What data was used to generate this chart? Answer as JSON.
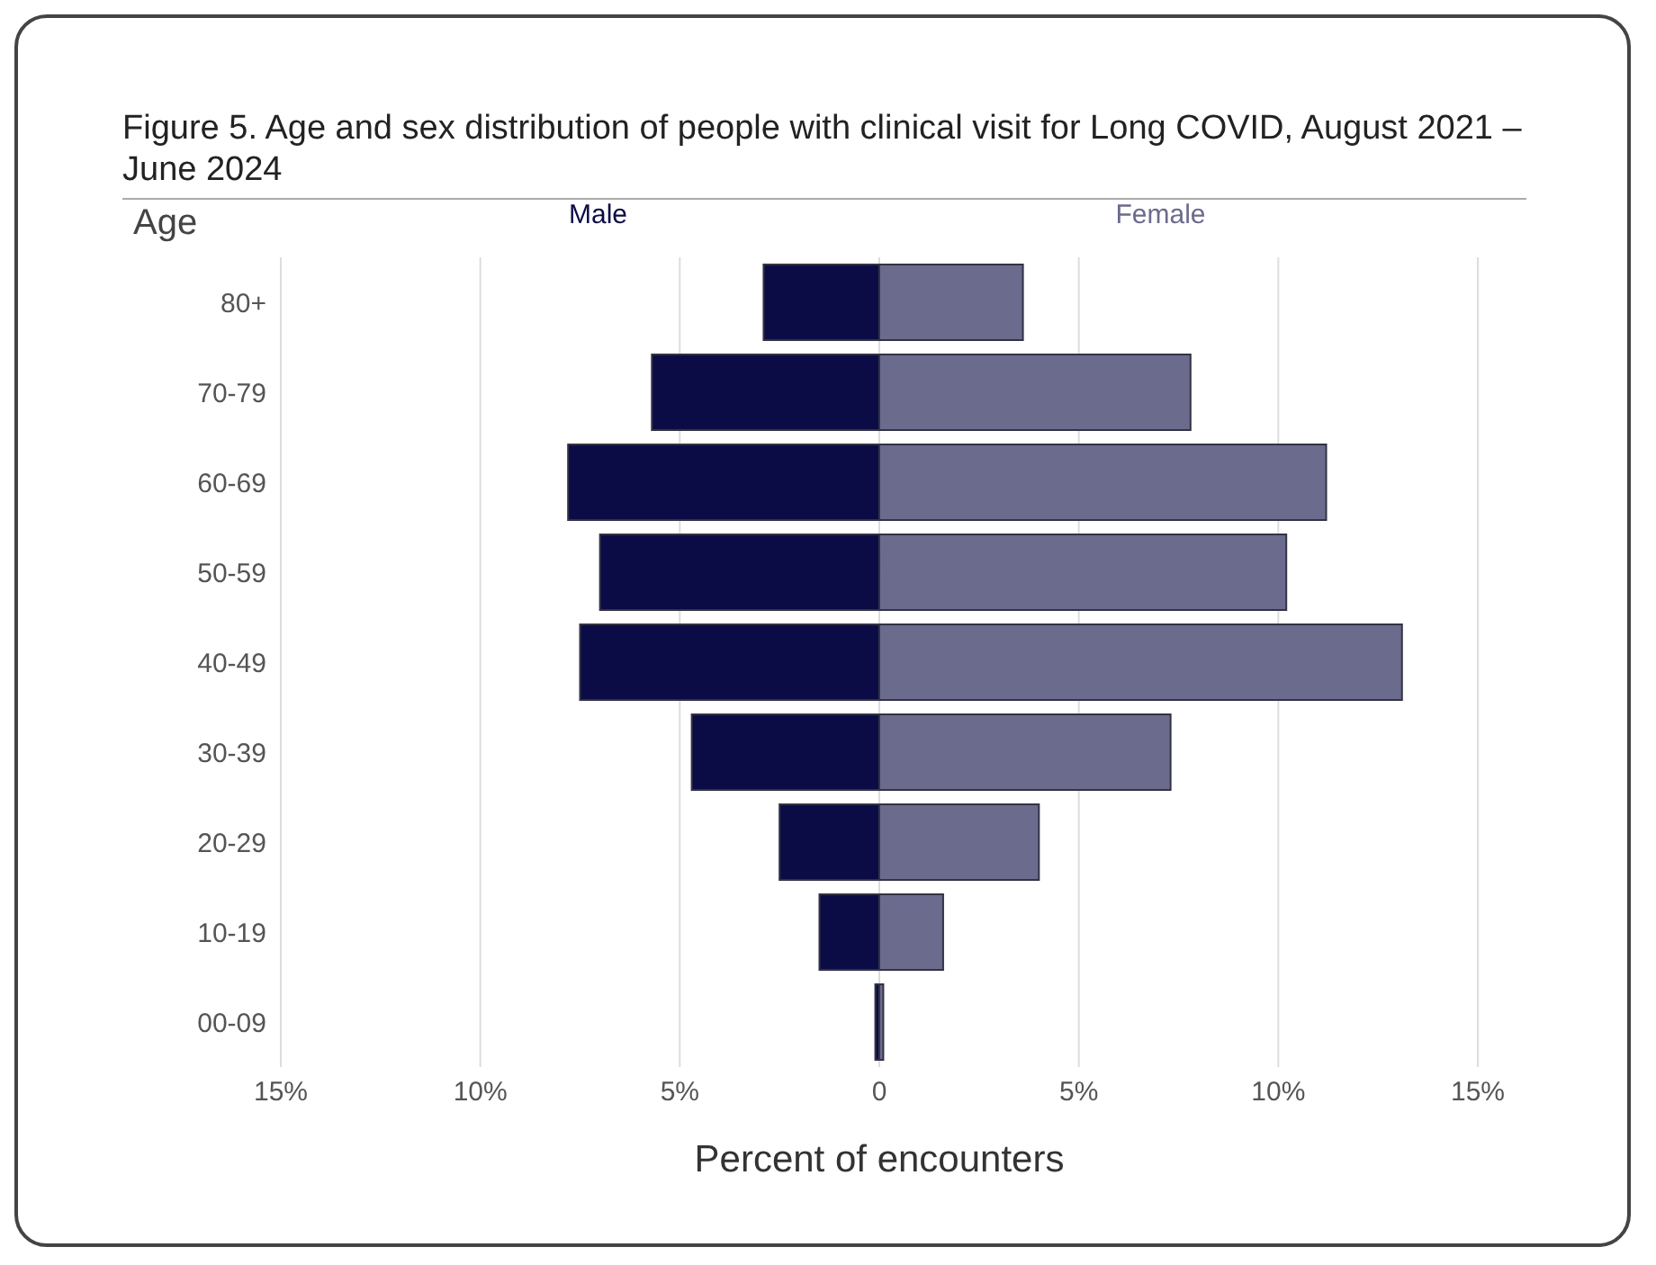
{
  "chart_data": {
    "type": "bar",
    "orientation": "horizontal",
    "stacked": true,
    "title": "Figure 5. Age and sex distribution of people with clinical visit for Long COVID, August 2021 – June 2024",
    "ylabel": "Age",
    "xlabel": "Percent of encounters",
    "categories": [
      "80+",
      "70-79",
      "60-69",
      "50-59",
      "40-49",
      "30-39",
      "20-29",
      "10-19",
      "00-09"
    ],
    "series": [
      {
        "name": "Male",
        "color": "#0b0c46",
        "values": [
          -2.9,
          -5.7,
          -7.8,
          -7.0,
          -7.5,
          -4.7,
          -2.5,
          -1.5,
          -0.1
        ]
      },
      {
        "name": "Female",
        "color": "#6b6b8e",
        "values": [
          3.6,
          7.8,
          11.2,
          10.2,
          13.1,
          7.3,
          4.0,
          1.6,
          0.1
        ]
      }
    ],
    "xlim": [
      -15,
      15
    ],
    "xticks": [
      {
        "value": -15,
        "label": "15%"
      },
      {
        "value": -10,
        "label": "10%"
      },
      {
        "value": -5,
        "label": "5%"
      },
      {
        "value": 0,
        "label": "0"
      },
      {
        "value": 5,
        "label": "5%"
      },
      {
        "value": 10,
        "label": "10%"
      },
      {
        "value": 15,
        "label": "15%"
      }
    ],
    "grid": "x",
    "legend": "top"
  }
}
